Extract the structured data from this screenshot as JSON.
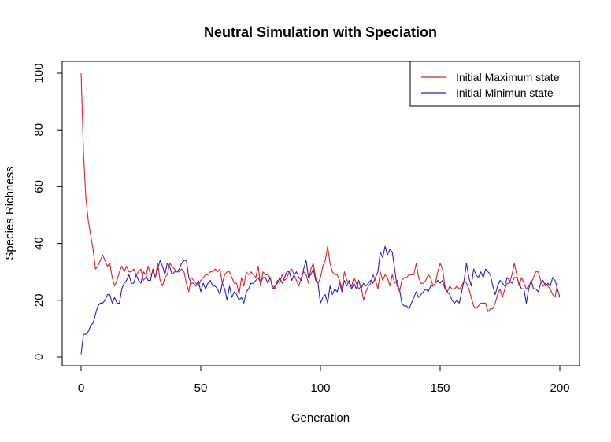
{
  "chart_data": {
    "type": "line",
    "title": "Neutral Simulation with Speciation",
    "xlabel": "Generation",
    "ylabel": "Species Richness",
    "xlim": [
      0,
      200
    ],
    "ylim": [
      0,
      100
    ],
    "xticks": [
      0,
      50,
      100,
      150,
      200
    ],
    "yticks": [
      0,
      20,
      40,
      60,
      80,
      100
    ],
    "grid": false,
    "legend_position": "top-right",
    "series": [
      {
        "name": "Initial Maximum state",
        "color": "#dd2222",
        "values": [
          100,
          72,
          56,
          48,
          43,
          38,
          31,
          32,
          34,
          36,
          34,
          32,
          33,
          28,
          25,
          27,
          30,
          32,
          30,
          32,
          30,
          30,
          31,
          29,
          30,
          31,
          27,
          28,
          32,
          29,
          30,
          28,
          33,
          27,
          25,
          28,
          29,
          33,
          32,
          31,
          30,
          30,
          31,
          30,
          26,
          23,
          28,
          27,
          26,
          25,
          27,
          28,
          29,
          29,
          30,
          30,
          31,
          30,
          31,
          26,
          29,
          30,
          30,
          28,
          26,
          26,
          22,
          28,
          25,
          30,
          29,
          30,
          29,
          28,
          32,
          25,
          30,
          29,
          29,
          28,
          25,
          24,
          27,
          26,
          29,
          27,
          28,
          30,
          31,
          29,
          27,
          25,
          28,
          30,
          29,
          26,
          31,
          33,
          28,
          26,
          28,
          32,
          34,
          39,
          33,
          30,
          29,
          29,
          27,
          24,
          30,
          27,
          26,
          25,
          28,
          26,
          24,
          25,
          20,
          23,
          25,
          26,
          29,
          27,
          24,
          30,
          27,
          29,
          28,
          25,
          29,
          26,
          27,
          23,
          27,
          28,
          28,
          29,
          29,
          29,
          33,
          28,
          26,
          26,
          27,
          29,
          28,
          25,
          26,
          30,
          33,
          31,
          25,
          23,
          25,
          24,
          24,
          25,
          24,
          25,
          27,
          26,
          24,
          21,
          18,
          17,
          18,
          19,
          19,
          19,
          16,
          17,
          17,
          19,
          22,
          24,
          21,
          24,
          26,
          26,
          29,
          33,
          29,
          25,
          28,
          26,
          24,
          25,
          26,
          28,
          30,
          30,
          27,
          25,
          26,
          25,
          24,
          22,
          21,
          26
        ]
      },
      {
        "name": "Initial Minimun state",
        "color": "#2222cc",
        "values": [
          1,
          8,
          8,
          9,
          11,
          12,
          15,
          18,
          19,
          19,
          20,
          22,
          22,
          19,
          21,
          19,
          19,
          24,
          26,
          27,
          29,
          26,
          26,
          29,
          27,
          26,
          30,
          29,
          27,
          27,
          31,
          28,
          31,
          34,
          32,
          29,
          33,
          32,
          29,
          30,
          30,
          31,
          33,
          34,
          34,
          28,
          26,
          26,
          25,
          27,
          23,
          26,
          24,
          26,
          27,
          25,
          25,
          24,
          22,
          26,
          24,
          20,
          25,
          21,
          23,
          22,
          20,
          21,
          19,
          23,
          24,
          26,
          26,
          27,
          28,
          26,
          28,
          28,
          26,
          28,
          24,
          25,
          26,
          28,
          26,
          28,
          30,
          30,
          27,
          29,
          30,
          28,
          27,
          31,
          34,
          28,
          29,
          31,
          27,
          26,
          19,
          21,
          22,
          19,
          25,
          22,
          24,
          23,
          26,
          23,
          27,
          25,
          27,
          24,
          26,
          24,
          27,
          24,
          26,
          25,
          26,
          27,
          26,
          28,
          30,
          37,
          35,
          39,
          36,
          38,
          37,
          31,
          25,
          24,
          19,
          18,
          18,
          17,
          19,
          21,
          23,
          21,
          22,
          23,
          24,
          23,
          25,
          25,
          26,
          27,
          26,
          27,
          24,
          23,
          22,
          20,
          19,
          20,
          19,
          23,
          27,
          33,
          28,
          25,
          31,
          29,
          28,
          30,
          28,
          31,
          30,
          29,
          25,
          22,
          25,
          27,
          26,
          25,
          28,
          27,
          26,
          28,
          28,
          26,
          24,
          24,
          19,
          24,
          27,
          24,
          24,
          23,
          26,
          27,
          25,
          26,
          25,
          28,
          27,
          24,
          21
        ]
      }
    ]
  }
}
